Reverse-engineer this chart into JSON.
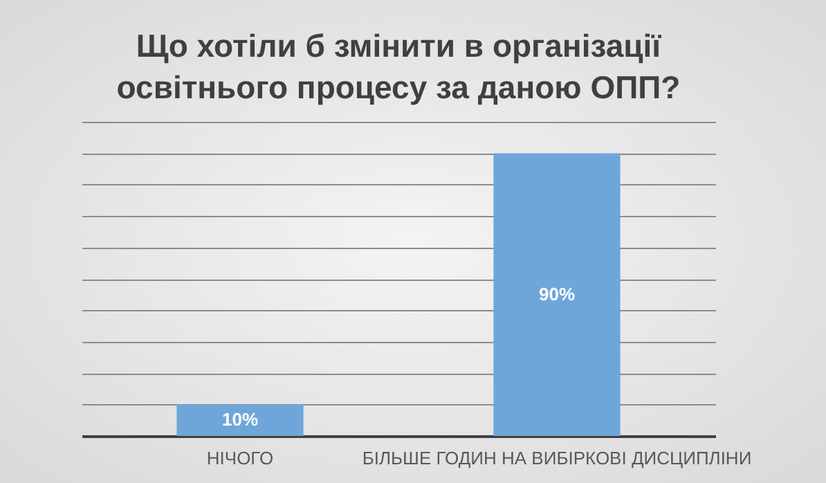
{
  "chart_data": {
    "type": "bar",
    "title": "Що хотіли б змінити в організації освітнього процесу за даною ОПП?",
    "categories": [
      "НІЧОГО",
      "БІЛЬШЕ ГОДИН НА ВИБІРКОВІ ДИСЦИПЛІНИ"
    ],
    "values": [
      10,
      90
    ],
    "value_labels": [
      "10%",
      "90%"
    ],
    "color": "#6fa6da",
    "ylim": [
      0,
      100
    ],
    "yticks": [
      {
        "value": 0,
        "label": null
      },
      {
        "value": 10,
        "label": null
      },
      {
        "value": 20,
        "label": null
      },
      {
        "value": 30,
        "label": null
      },
      {
        "value": 40,
        "label": null
      },
      {
        "value": 50,
        "label": null
      },
      {
        "value": 60,
        "label": null
      },
      {
        "value": 70,
        "label": null
      },
      {
        "value": 80,
        "label": null
      },
      {
        "value": 90,
        "label": null
      },
      {
        "value": 100,
        "label": null
      }
    ],
    "grid": "y",
    "tick_labels": "x"
  }
}
